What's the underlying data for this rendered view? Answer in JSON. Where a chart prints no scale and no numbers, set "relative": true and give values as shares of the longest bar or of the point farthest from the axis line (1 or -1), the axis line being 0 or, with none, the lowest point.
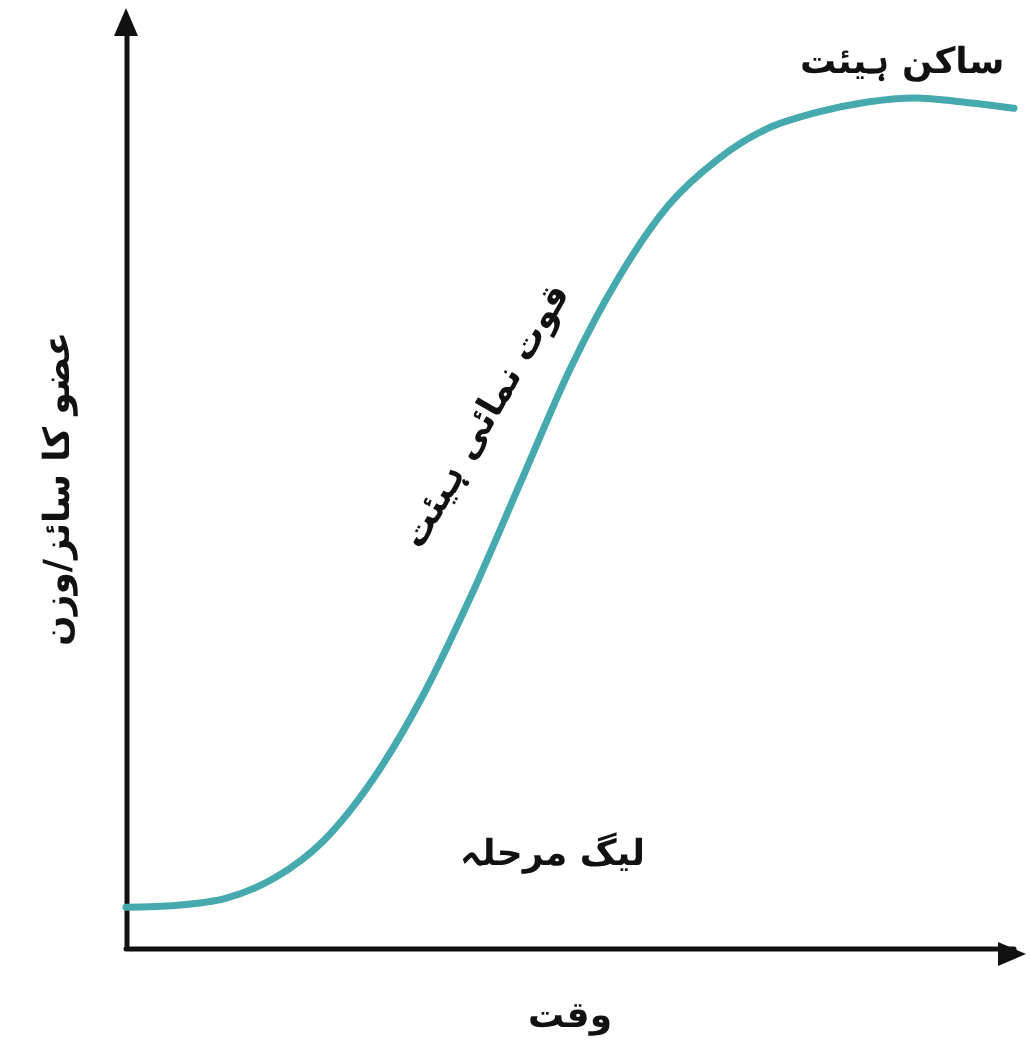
{
  "chart_data": {
    "type": "line",
    "relative": true,
    "xlabel": "وقت",
    "ylabel": "عضو کا سائز/وزن",
    "categories": [
      null,
      null,
      null,
      null,
      null,
      null,
      null,
      null,
      null,
      null,
      null,
      null,
      null,
      null,
      null,
      null,
      null,
      null,
      null
    ],
    "series": [
      {
        "color": "#45a9ad",
        "values": [
          0.048,
          0.05,
          0.058,
          0.082,
          0.126,
          0.198,
          0.295,
          0.415,
          0.548,
          0.681,
          0.79,
          0.874,
          0.928,
          0.964,
          0.983,
          0.995,
          1,
          0.995,
          0.988
        ]
      }
    ],
    "annotations": [
      "ساکن ہیئت",
      "قوت نمائی ہیئت",
      "لیگ مرحلہ"
    ],
    "grid": false,
    "marker": "none",
    "line_style": "solid"
  }
}
